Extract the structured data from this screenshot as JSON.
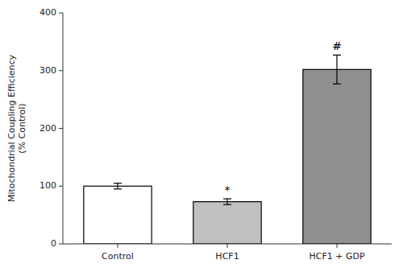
{
  "chart_data": {
    "type": "bar",
    "categories": [
      "Control",
      "HCF1",
      "HCF1 + GDP"
    ],
    "values": [
      100,
      73,
      302
    ],
    "errors": [
      5,
      5,
      25
    ],
    "colors": [
      "#ffffff",
      "#c0c0c0",
      "#909090"
    ],
    "annotations": [
      {
        "category": "HCF1",
        "text": "*"
      },
      {
        "category": "HCF1 + GDP",
        "text": "#"
      }
    ],
    "ylabel": "Mitochondrial Coupling Efficiency\n(% Control)",
    "ylim": [
      0,
      400
    ],
    "yticks": [
      0,
      100,
      200,
      300,
      400
    ],
    "grid": false
  }
}
